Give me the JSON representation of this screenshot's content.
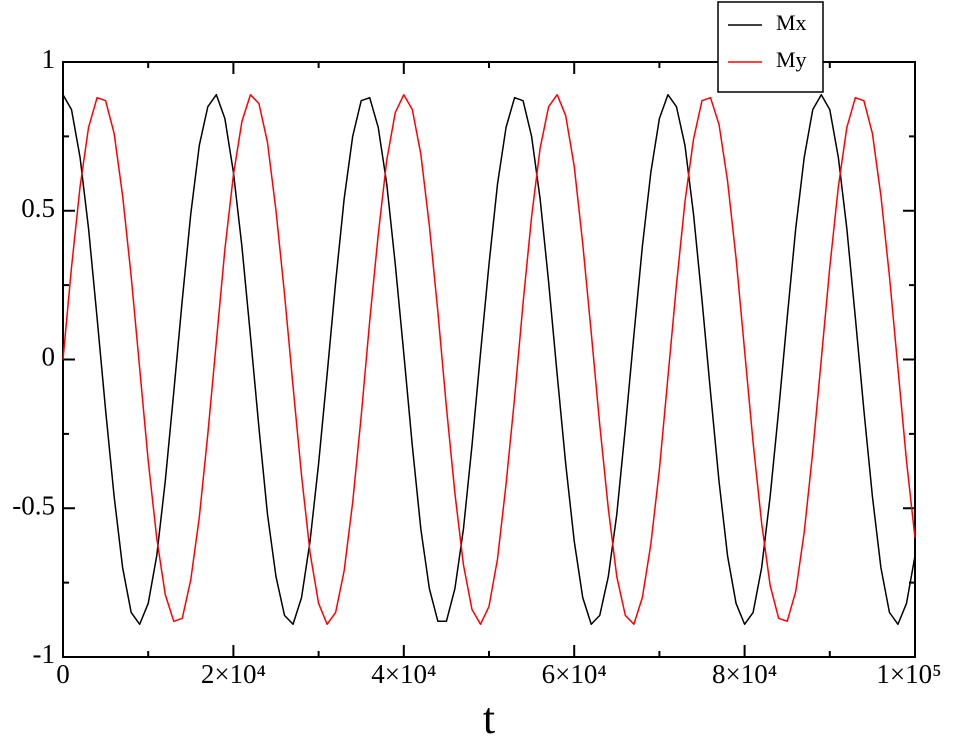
{
  "chart_data": {
    "type": "line",
    "x_label": "t",
    "x": [
      0,
      1000,
      2000,
      3000,
      4000,
      5000,
      6000,
      7000,
      8000,
      9000,
      10000,
      11000,
      12000,
      13000,
      14000,
      15000,
      16000,
      17000,
      18000,
      19000,
      20000,
      21000,
      22000,
      23000,
      24000,
      25000,
      26000,
      27000,
      28000,
      29000,
      30000,
      31000,
      32000,
      33000,
      34000,
      35000,
      36000,
      37000,
      38000,
      39000,
      40000,
      41000,
      42000,
      43000,
      44000,
      45000,
      46000,
      47000,
      48000,
      49000,
      50000,
      51000,
      52000,
      53000,
      54000,
      55000,
      56000,
      57000,
      58000,
      59000,
      60000,
      61000,
      62000,
      63000,
      64000,
      65000,
      66000,
      67000,
      68000,
      69000,
      70000,
      71000,
      72000,
      73000,
      74000,
      75000,
      76000,
      77000,
      78000,
      79000,
      80000,
      81000,
      82000,
      83000,
      84000,
      85000,
      86000,
      87000,
      88000,
      89000,
      90000,
      91000,
      92000,
      93000,
      94000,
      95000,
      96000,
      97000,
      98000,
      99000,
      100000
    ],
    "series": [
      {
        "name": "Mx",
        "color": "#000000",
        "values": [
          0.89,
          0.84,
          0.68,
          0.44,
          0.14,
          -0.17,
          -0.46,
          -0.7,
          -0.85,
          -0.89,
          -0.82,
          -0.66,
          -0.41,
          -0.11,
          0.2,
          0.49,
          0.72,
          0.85,
          0.89,
          0.81,
          0.63,
          0.38,
          0.08,
          -0.23,
          -0.52,
          -0.73,
          -0.86,
          -0.89,
          -0.8,
          -0.61,
          -0.35,
          -0.05,
          0.26,
          0.54,
          0.75,
          0.87,
          0.88,
          0.78,
          0.59,
          0.32,
          0.02,
          -0.29,
          -0.57,
          -0.77,
          -0.88,
          -0.88,
          -0.77,
          -0.57,
          -0.29,
          0.02,
          0.32,
          0.59,
          0.78,
          0.88,
          0.87,
          0.75,
          0.54,
          0.26,
          -0.05,
          -0.35,
          -0.61,
          -0.8,
          -0.89,
          -0.86,
          -0.73,
          -0.52,
          -0.23,
          0.08,
          0.38,
          0.63,
          0.81,
          0.89,
          0.85,
          0.72,
          0.49,
          0.2,
          -0.11,
          -0.41,
          -0.66,
          -0.82,
          -0.89,
          -0.85,
          -0.7,
          -0.46,
          -0.17,
          0.14,
          0.44,
          0.68,
          0.84,
          0.89,
          0.84,
          0.68,
          0.44,
          0.14,
          -0.17,
          -0.46,
          -0.7,
          -0.85,
          -0.89,
          -0.82,
          -0.66
        ]
      },
      {
        "name": "My",
        "color": "#ff0000",
        "values": [
          0,
          0.31,
          0.58,
          0.78,
          0.88,
          0.87,
          0.76,
          0.55,
          0.28,
          -0.03,
          -0.34,
          -0.6,
          -0.79,
          -0.88,
          -0.87,
          -0.74,
          -0.53,
          -0.25,
          0.06,
          0.37,
          0.62,
          0.8,
          0.89,
          0.86,
          0.73,
          0.5,
          0.22,
          -0.09,
          -0.39,
          -0.65,
          -0.82,
          -0.89,
          -0.85,
          -0.71,
          -0.48,
          -0.19,
          0.13,
          0.42,
          0.67,
          0.83,
          0.89,
          0.84,
          0.69,
          0.45,
          0.16,
          -0.16,
          -0.45,
          -0.69,
          -0.84,
          -0.89,
          -0.83,
          -0.67,
          -0.42,
          -0.13,
          0.19,
          0.48,
          0.71,
          0.85,
          0.89,
          0.82,
          0.65,
          0.39,
          0.09,
          -0.22,
          -0.5,
          -0.73,
          -0.86,
          -0.89,
          -0.8,
          -0.62,
          -0.37,
          -0.06,
          0.25,
          0.53,
          0.74,
          0.87,
          0.88,
          0.79,
          0.6,
          0.34,
          0.03,
          -0.28,
          -0.55,
          -0.76,
          -0.87,
          -0.88,
          -0.78,
          -0.58,
          -0.31,
          0,
          0.31,
          0.58,
          0.78,
          0.88,
          0.87,
          0.76,
          0.55,
          0.28,
          -0.03,
          -0.34,
          -0.6
        ]
      }
    ],
    "xlim": [
      0,
      100000
    ],
    "xticks": [
      0,
      {
        "value": 20000,
        "label": "2×10⁴"
      },
      {
        "value": 40000,
        "label": "4×10⁴"
      },
      {
        "value": 60000,
        "label": "6×10⁴"
      },
      {
        "value": 80000,
        "label": "8×10⁴"
      },
      {
        "value": 100000,
        "label": "1×10⁵"
      }
    ],
    "xticks_minor": [
      10000,
      30000,
      50000,
      70000,
      90000
    ],
    "ylim": [
      -1,
      1
    ],
    "yticks": [
      -1,
      -0.5,
      0,
      0.5,
      1
    ],
    "yticks_minor": [
      -0.75,
      -0.25,
      0.25,
      0.75
    ],
    "grid": false,
    "legend": "top-right"
  }
}
